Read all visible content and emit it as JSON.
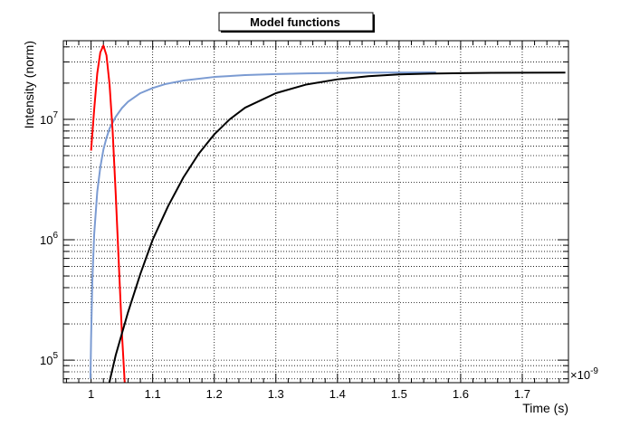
{
  "chart_data": {
    "type": "line",
    "title": "Model functions",
    "xlabel": "Time (s)",
    "ylabel": "Intensity (norm)",
    "x_exponent_label": "×10",
    "x_exponent_power": "-9",
    "xscale_factor": 1e-09,
    "xlim": [
      0.955,
      1.775
    ],
    "ylim": [
      65000,
      45000000
    ],
    "yscale": "log",
    "grid": true,
    "x_ticks": [
      1.0,
      1.1,
      1.2,
      1.3,
      1.4,
      1.5,
      1.6,
      1.7
    ],
    "x_tick_labels": [
      "1",
      "1.1",
      "1.2",
      "1.3",
      "1.4",
      "1.5",
      "1.6",
      "1.7"
    ],
    "y_ticks": [
      {
        "base": "10",
        "exp": "5",
        "value": 100000
      },
      {
        "base": "10",
        "exp": "6",
        "value": 1000000
      },
      {
        "base": "10",
        "exp": "7",
        "value": 10000000
      }
    ],
    "series": [
      {
        "color": "#7b9bd2",
        "x": [
          0.999,
          1.0,
          1.002,
          1.005,
          1.01,
          1.015,
          1.02,
          1.025,
          1.03,
          1.04,
          1.05,
          1.06,
          1.08,
          1.1,
          1.12,
          1.15,
          1.2,
          1.25,
          1.3,
          1.35,
          1.4,
          1.45,
          1.5,
          1.55,
          1.56
        ],
        "y": [
          70000,
          150000,
          450000,
          1100000,
          2500000,
          4000000,
          5600000,
          7000000,
          8400000,
          10500000,
          12400000,
          14000000,
          16500000,
          18200000,
          19600000,
          21000000,
          22500000,
          23300000,
          23800000,
          24100000,
          24300000,
          24400000,
          24500000,
          24550000,
          24560000
        ]
      },
      {
        "color": "#ff0000",
        "x": [
          1.0,
          1.005,
          1.01,
          1.015,
          1.02,
          1.025,
          1.03,
          1.035,
          1.04,
          1.045,
          1.05,
          1.055,
          1.06
        ],
        "y": [
          5500000,
          12000000,
          24000000,
          36000000,
          41000000,
          34000000,
          19500000,
          8000000,
          2400000,
          640000,
          170000,
          60000,
          20000
        ]
      },
      {
        "color": "#000000",
        "x": [
          1.028,
          1.04,
          1.06,
          1.08,
          1.1,
          1.125,
          1.15,
          1.175,
          1.2,
          1.225,
          1.25,
          1.3,
          1.35,
          1.4,
          1.45,
          1.5,
          1.55,
          1.6,
          1.65,
          1.7,
          1.77
        ],
        "y": [
          60000,
          110000,
          250000,
          520000,
          1000000,
          1900000,
          3300000,
          5200000,
          7500000,
          10000000,
          12500000,
          16500000,
          19500000,
          21500000,
          22800000,
          23600000,
          24000000,
          24200000,
          24350000,
          24400000,
          24450000
        ]
      }
    ]
  }
}
